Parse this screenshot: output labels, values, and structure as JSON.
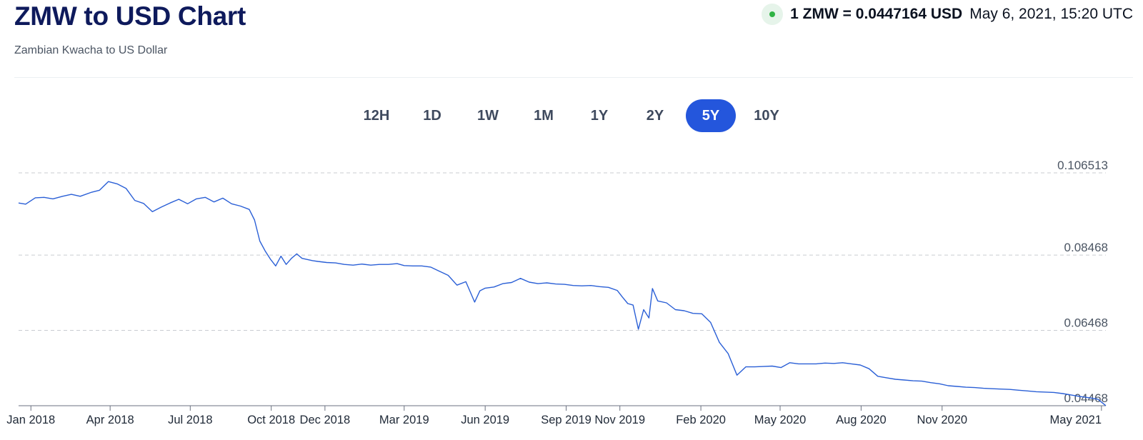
{
  "header": {
    "title": "ZMW to USD Chart",
    "subtitle": "Zambian Kwacha to US Dollar",
    "rate_text": "1 ZMW = 0.0447164 USD",
    "rate_time": "May 6, 2021, 15:20 UTC",
    "status_color": "#2fb344"
  },
  "tabs": [
    {
      "label": "12H",
      "active": false
    },
    {
      "label": "1D",
      "active": false
    },
    {
      "label": "1W",
      "active": false
    },
    {
      "label": "1M",
      "active": false
    },
    {
      "label": "1Y",
      "active": false
    },
    {
      "label": "2Y",
      "active": false
    },
    {
      "label": "5Y",
      "active": true
    },
    {
      "label": "10Y",
      "active": false
    }
  ],
  "colors": {
    "accent": "#2456dc",
    "line": "#2a5fd6",
    "grid": "#c9ccd1"
  },
  "chart_data": {
    "type": "line",
    "title": "",
    "xlabel": "",
    "ylabel": "",
    "grid": true,
    "x_tick_labels": [
      "Jan 2018",
      "Apr 2018",
      "Jul 2018",
      "Oct 2018",
      "Dec 2018",
      "Mar 2019",
      "Jun 2019",
      "Sep 2019",
      "Nov 2019",
      "Feb 2020",
      "May 2020",
      "Aug 2020",
      "Nov 2020",
      "May 2021"
    ],
    "x_tick_dates": [
      "2018-01-01",
      "2018-04-01",
      "2018-07-01",
      "2018-10-01",
      "2018-12-01",
      "2019-03-01",
      "2019-06-01",
      "2019-09-01",
      "2019-11-01",
      "2020-02-01",
      "2020-05-01",
      "2020-08-01",
      "2020-11-01",
      "2021-05-01"
    ],
    "y_tick_labels": [
      "0.106513",
      "0.08468",
      "0.06468",
      "0.04468"
    ],
    "y_ticks": [
      0.106513,
      0.08468,
      0.06468,
      0.04468
    ],
    "xlim": [
      "2017-12-18",
      "2021-05-06"
    ],
    "ylim": [
      0.04468,
      0.106513
    ],
    "series": [
      {
        "x": [
          "2017-12-18",
          "2017-12-26",
          "2018-01-06",
          "2018-01-16",
          "2018-01-26",
          "2018-02-06",
          "2018-02-16",
          "2018-02-26",
          "2018-03-10",
          "2018-03-20",
          "2018-03-30",
          "2018-04-09",
          "2018-04-19",
          "2018-04-29",
          "2018-05-09",
          "2018-05-19",
          "2018-05-29",
          "2018-06-08",
          "2018-06-18",
          "2018-06-28",
          "2018-07-08",
          "2018-07-18",
          "2018-07-28",
          "2018-08-07",
          "2018-08-17",
          "2018-08-27",
          "2018-09-06",
          "2018-09-12",
          "2018-09-18",
          "2018-09-24",
          "2018-09-30",
          "2018-10-06",
          "2018-10-12",
          "2018-10-18",
          "2018-10-24",
          "2018-10-30",
          "2018-11-05",
          "2018-11-11",
          "2018-11-17",
          "2018-11-23",
          "2018-12-03",
          "2018-12-13",
          "2018-12-23",
          "2019-01-02",
          "2019-01-12",
          "2019-01-22",
          "2019-02-01",
          "2019-02-11",
          "2019-02-21",
          "2019-03-01",
          "2019-03-11",
          "2019-03-21",
          "2019-03-31",
          "2019-04-10",
          "2019-04-20",
          "2019-04-30",
          "2019-05-10",
          "2019-05-20",
          "2019-05-26",
          "2019-06-01",
          "2019-06-11",
          "2019-06-21",
          "2019-07-01",
          "2019-07-11",
          "2019-07-21",
          "2019-07-31",
          "2019-08-10",
          "2019-08-20",
          "2019-08-30",
          "2019-09-09",
          "2019-09-19",
          "2019-09-29",
          "2019-10-09",
          "2019-10-19",
          "2019-10-29",
          "2019-11-04",
          "2019-11-10",
          "2019-11-16",
          "2019-11-22",
          "2019-11-28",
          "2019-12-04",
          "2019-12-08",
          "2019-12-14",
          "2019-12-24",
          "2020-01-03",
          "2020-01-13",
          "2020-01-23",
          "2020-02-02",
          "2020-02-12",
          "2020-02-22",
          "2020-03-03",
          "2020-03-13",
          "2020-03-23",
          "2020-04-02",
          "2020-04-12",
          "2020-04-22",
          "2020-05-02",
          "2020-05-12",
          "2020-05-22",
          "2020-06-01",
          "2020-06-11",
          "2020-06-21",
          "2020-07-01",
          "2020-07-11",
          "2020-07-21",
          "2020-07-31",
          "2020-08-10",
          "2020-08-20",
          "2020-08-30",
          "2020-09-09",
          "2020-09-19",
          "2020-09-29",
          "2020-10-09",
          "2020-10-19",
          "2020-10-29",
          "2020-11-08",
          "2020-11-18",
          "2020-11-28",
          "2020-12-08",
          "2020-12-18",
          "2020-12-28",
          "2021-01-07",
          "2021-01-17",
          "2021-01-27",
          "2021-02-06",
          "2021-02-16",
          "2021-02-26",
          "2021-03-08",
          "2021-03-18",
          "2021-03-28",
          "2021-04-07",
          "2021-04-17",
          "2021-04-27",
          "2021-05-06"
        ],
        "values": [
          0.0985,
          0.0982,
          0.0999,
          0.1,
          0.0996,
          0.1003,
          0.1008,
          0.1003,
          0.1013,
          0.1019,
          0.1042,
          0.1036,
          0.1024,
          0.0992,
          0.0984,
          0.0962,
          0.0974,
          0.0985,
          0.0995,
          0.0983,
          0.0996,
          0.1,
          0.0988,
          0.0998,
          0.0983,
          0.0977,
          0.0968,
          0.094,
          0.0884,
          0.0858,
          0.0836,
          0.0818,
          0.0844,
          0.0822,
          0.0838,
          0.085,
          0.0838,
          0.0835,
          0.0832,
          0.083,
          0.0827,
          0.0826,
          0.0822,
          0.082,
          0.0823,
          0.082,
          0.0822,
          0.0822,
          0.0824,
          0.0819,
          0.0818,
          0.0818,
          0.0815,
          0.0804,
          0.0793,
          0.0767,
          0.0776,
          0.0722,
          0.0752,
          0.0759,
          0.0762,
          0.0771,
          0.0774,
          0.0785,
          0.0775,
          0.0771,
          0.0773,
          0.077,
          0.0769,
          0.0766,
          0.0765,
          0.0766,
          0.0763,
          0.0761,
          0.0753,
          0.0735,
          0.0718,
          0.0714,
          0.065,
          0.0702,
          0.068,
          0.0758,
          0.0725,
          0.072,
          0.0702,
          0.0699,
          0.0692,
          0.0691,
          0.0668,
          0.0615,
          0.0585,
          0.0528,
          0.055,
          0.055,
          0.0551,
          0.0552,
          0.0548,
          0.0561,
          0.0558,
          0.0558,
          0.0558,
          0.056,
          0.0559,
          0.0561,
          0.0558,
          0.0555,
          0.0545,
          0.0525,
          0.0521,
          0.0517,
          0.0515,
          0.0513,
          0.0512,
          0.0508,
          0.0505,
          0.05,
          0.0498,
          0.0496,
          0.0495,
          0.0493,
          0.0492,
          0.0491,
          0.049,
          0.0488,
          0.0486,
          0.0484,
          0.0483,
          0.0482,
          0.0479,
          0.0475,
          0.0471,
          0.0468,
          0.0464,
          0.0447
        ]
      }
    ]
  }
}
